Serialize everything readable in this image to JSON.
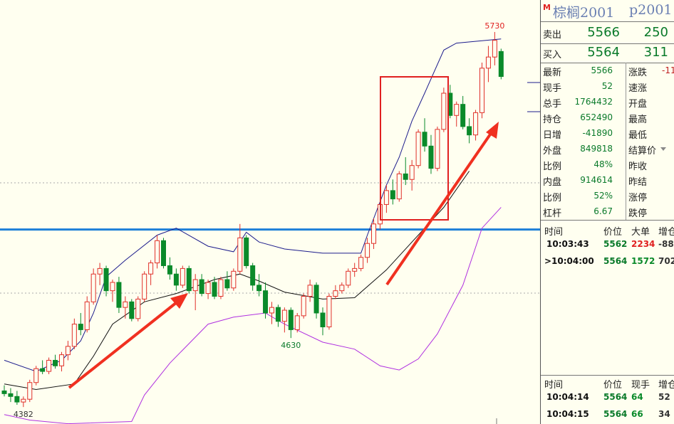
{
  "chart_data": {
    "type": "candlestick",
    "ohlc": [
      [
        4440,
        4460,
        4420,
        4430
      ],
      [
        4430,
        4450,
        4400,
        4420
      ],
      [
        4420,
        4440,
        4390,
        4400
      ],
      [
        4400,
        4420,
        4382,
        4410
      ],
      [
        4410,
        4480,
        4400,
        4470
      ],
      [
        4470,
        4530,
        4460,
        4520
      ],
      [
        4520,
        4550,
        4500,
        4510
      ],
      [
        4510,
        4560,
        4500,
        4550
      ],
      [
        4550,
        4570,
        4520,
        4530
      ],
      [
        4530,
        4580,
        4510,
        4570
      ],
      [
        4570,
        4620,
        4550,
        4600
      ],
      [
        4600,
        4700,
        4590,
        4680
      ],
      [
        4680,
        4720,
        4640,
        4660
      ],
      [
        4660,
        4780,
        4650,
        4760
      ],
      [
        4760,
        4880,
        4750,
        4860
      ],
      [
        4860,
        4900,
        4820,
        4880
      ],
      [
        4880,
        4890,
        4780,
        4800
      ],
      [
        4800,
        4840,
        4760,
        4830
      ],
      [
        4830,
        4850,
        4720,
        4740
      ],
      [
        4740,
        4780,
        4700,
        4760
      ],
      [
        4760,
        4770,
        4690,
        4700
      ],
      [
        4700,
        4780,
        4690,
        4770
      ],
      [
        4770,
        4870,
        4760,
        4860
      ],
      [
        4860,
        4910,
        4820,
        4900
      ],
      [
        4900,
        5000,
        4880,
        4980
      ],
      [
        4980,
        4990,
        4880,
        4890
      ],
      [
        4890,
        4920,
        4840,
        4860
      ],
      [
        4860,
        4880,
        4800,
        4820
      ],
      [
        4820,
        4890,
        4810,
        4880
      ],
      [
        4880,
        4890,
        4790,
        4800
      ],
      [
        4800,
        4860,
        4730,
        4840
      ],
      [
        4840,
        4860,
        4780,
        4790
      ],
      [
        4790,
        4840,
        4770,
        4830
      ],
      [
        4830,
        4850,
        4770,
        4780
      ],
      [
        4780,
        4850,
        4770,
        4840
      ],
      [
        4840,
        4870,
        4800,
        4810
      ],
      [
        4810,
        4880,
        4800,
        4870
      ],
      [
        4870,
        5040,
        4860,
        4990
      ],
      [
        4990,
        5000,
        4880,
        4890
      ],
      [
        4890,
        4900,
        4800,
        4820
      ],
      [
        4820,
        4860,
        4780,
        4800
      ],
      [
        4800,
        4830,
        4700,
        4720
      ],
      [
        4720,
        4760,
        4680,
        4740
      ],
      [
        4740,
        4750,
        4670,
        4690
      ],
      [
        4690,
        4740,
        4650,
        4730
      ],
      [
        4730,
        4740,
        4630,
        4660
      ],
      [
        4660,
        4720,
        4650,
        4710
      ],
      [
        4710,
        4790,
        4700,
        4780
      ],
      [
        4780,
        4840,
        4760,
        4820
      ],
      [
        4820,
        4830,
        4700,
        4720
      ],
      [
        4720,
        4740,
        4640,
        4670
      ],
      [
        4670,
        4790,
        4660,
        4780
      ],
      [
        4780,
        4820,
        4770,
        4800
      ],
      [
        4800,
        4830,
        4790,
        4820
      ],
      [
        4820,
        4880,
        4810,
        4870
      ],
      [
        4870,
        4900,
        4850,
        4880
      ],
      [
        4880,
        4930,
        4870,
        4920
      ],
      [
        4920,
        4990,
        4900,
        4970
      ],
      [
        4970,
        5060,
        4950,
        5040
      ],
      [
        5040,
        5130,
        5020,
        5110
      ],
      [
        5110,
        5180,
        5080,
        5160
      ],
      [
        5160,
        5200,
        5110,
        5130
      ],
      [
        5130,
        5230,
        5120,
        5220
      ],
      [
        5220,
        5280,
        5180,
        5200
      ],
      [
        5200,
        5270,
        5160,
        5250
      ],
      [
        5250,
        5380,
        5240,
        5370
      ],
      [
        5370,
        5420,
        5300,
        5320
      ],
      [
        5320,
        5360,
        5220,
        5240
      ],
      [
        5240,
        5390,
        5230,
        5380
      ],
      [
        5380,
        5530,
        5370,
        5510
      ],
      [
        5510,
        5540,
        5420,
        5430
      ],
      [
        5430,
        5480,
        5390,
        5470
      ],
      [
        5470,
        5500,
        5380,
        5390
      ],
      [
        5390,
        5420,
        5330,
        5360
      ],
      [
        5360,
        5450,
        5340,
        5440
      ],
      [
        5440,
        5620,
        5420,
        5600
      ],
      [
        5600,
        5680,
        5550,
        5640
      ],
      [
        5640,
        5730,
        5610,
        5700
      ],
      [
        5660,
        5670,
        5560,
        5570
      ]
    ],
    "up_color": "#e0302a",
    "down_color": "#0a8a2a",
    "ylim": [
      4321,
      5845
    ],
    "bands": [
      {
        "color": "#1c1c8c",
        "x": [
          0,
          5,
          9,
          12,
          14,
          16,
          19,
          24,
          27,
          32,
          36,
          38,
          40,
          44,
          50,
          56,
          57,
          60,
          62,
          64,
          66,
          69,
          71,
          78
        ],
        "values": [
          4550,
          4510,
          4550,
          4620,
          4720,
          4850,
          4910,
          5000,
          5025,
          4960,
          4940,
          5010,
          4975,
          4950,
          4935,
          4935,
          5000,
          5180,
          5280,
          5410,
          5510,
          5665,
          5690,
          5705
        ]
      },
      {
        "color": "#111111",
        "x": [
          0,
          5,
          11,
          14,
          17,
          22,
          27,
          33,
          37,
          40,
          44,
          50,
          55,
          58,
          60,
          64,
          69,
          73
        ],
        "values": [
          4465,
          4445,
          4465,
          4565,
          4680,
          4760,
          4790,
          4840,
          4860,
          4835,
          4795,
          4770,
          4775,
          4835,
          4875,
          4975,
          5100,
          5230
        ]
      },
      {
        "color": "#b030e0",
        "x": [
          0,
          4,
          10,
          20,
          22,
          26,
          32,
          36,
          41,
          44,
          50,
          55,
          59,
          62,
          65,
          68,
          72,
          75,
          78
        ],
        "values": [
          4355,
          4335,
          4322,
          4330,
          4425,
          4540,
          4680,
          4705,
          4720,
          4680,
          4615,
          4590,
          4530,
          4515,
          4555,
          4645,
          4820,
          5025,
          5100
        ]
      }
    ],
    "hline": 5020,
    "hline_color": "#1e7fd8",
    "annotations": [
      {
        "value": 5730,
        "at": 77,
        "place": "above",
        "color": "#e02020"
      },
      {
        "value": 4630,
        "at": 45,
        "place": "below",
        "color": "#0a7a2a"
      },
      {
        "value": 4382,
        "at": 3,
        "place": "below",
        "color": "#333333"
      }
    ]
  },
  "quote": {
    "symbol": "棕榈2001",
    "code": "p2001",
    "book": [
      {
        "label": "卖出",
        "price": 5566,
        "volume": 250
      },
      {
        "label": "买入",
        "price": 5564,
        "volume": 311
      }
    ],
    "stats_left": [
      {
        "label": "最新",
        "value": 5566
      },
      {
        "label": "现手",
        "value": 52
      },
      {
        "label": "总手",
        "value": 1764432
      },
      {
        "label": "持仓",
        "value": 652490
      },
      {
        "label": "日增",
        "value": -41890
      },
      {
        "label": "外盘",
        "value": 849818
      },
      {
        "label": "比例",
        "value": "48%"
      },
      {
        "label": "内盘",
        "value": 914614
      },
      {
        "label": "比例",
        "value": "52%"
      },
      {
        "label": "杠杆",
        "value": 6.67
      }
    ],
    "stats_right": [
      {
        "label": "涨跌",
        "value": -11
      },
      {
        "label": "速涨"
      },
      {
        "label": "开盘"
      },
      {
        "label": "最高"
      },
      {
        "label": "最低"
      },
      {
        "label": "结算价"
      },
      {
        "label": "昨收"
      },
      {
        "label": "昨结"
      },
      {
        "label": "涨停"
      },
      {
        "label": "跌停"
      }
    ],
    "trades": {
      "headers": [
        "时间",
        "价位",
        "大单",
        "增仓"
      ],
      "rows": [
        [
          "10:03:43",
          5562,
          2234,
          -88
        ],
        [
          ">10:04:00",
          5564,
          1572,
          702
        ]
      ],
      "size_colors": [
        "#e02020",
        "#0a8a2a"
      ]
    },
    "ticks": {
      "headers": [
        "时间",
        "价位",
        "现手",
        "增仓"
      ],
      "rows": [
        [
          "10:04:14",
          5564,
          64,
          52
        ],
        [
          "10:04:15",
          5564,
          66,
          34
        ]
      ],
      "size_colors": [
        "#0a8a2a",
        "#0a8a2a"
      ]
    }
  }
}
